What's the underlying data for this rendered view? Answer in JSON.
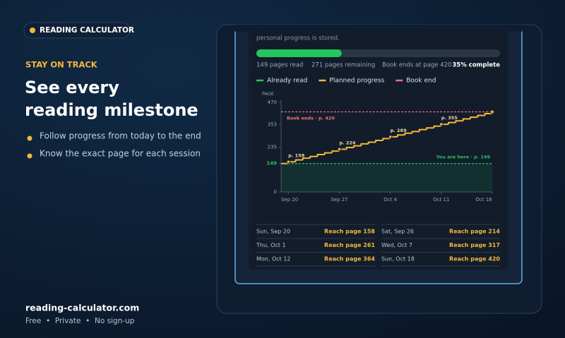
{
  "badge": "READING CALCULATOR",
  "eyebrow": "STAY ON TRACK",
  "headline": [
    "See every",
    "reading milestone"
  ],
  "bullets": [
    "Follow progress from today to the end",
    "Know the exact page for each session"
  ],
  "footer": {
    "site": "reading-calculator.com",
    "tagline": "Free  •  Private  •  No sign-up"
  },
  "card": {
    "intro": "personal progress is stored.",
    "progress": {
      "percent": 35,
      "label": "35% complete"
    },
    "stats": [
      "149 pages read",
      "271 pages remaining",
      "Book ends at page 420"
    ],
    "schedule": [
      [
        {
          "date": "Sun, Sep 20",
          "goal": "Reach page 158"
        },
        {
          "date": "Sat, Sep 26",
          "goal": "Reach page 214"
        }
      ],
      [
        {
          "date": "Thu, Oct 1",
          "goal": "Reach page 261"
        },
        {
          "date": "Wed, Oct 7",
          "goal": "Reach page 317"
        }
      ],
      [
        {
          "date": "Mon, Oct 12",
          "goal": "Reach page 364"
        },
        {
          "date": "Sun, Oct 18",
          "goal": "Reach page 420"
        }
      ]
    ]
  },
  "chart_data": {
    "type": "step",
    "ylabel": "PAGE",
    "legend": [
      {
        "name": "Already read",
        "color": "#22c55e"
      },
      {
        "name": "Planned progress",
        "color": "#f5b73b"
      },
      {
        "name": "Book end",
        "color": "#f07178"
      }
    ],
    "series": [
      {
        "name": "Planned progress",
        "color": "#f5b73b",
        "x": [
          0,
          1,
          2,
          3,
          4,
          5,
          6,
          7,
          8,
          9,
          10,
          11,
          12,
          13,
          14,
          15,
          16,
          17,
          18,
          19,
          20,
          21,
          22,
          23,
          24,
          25,
          26,
          27,
          28,
          29
        ],
        "values": [
          149,
          158,
          168,
          177,
          186,
          196,
          205,
          214,
          224,
          233,
          242,
          252,
          261,
          270,
          280,
          289,
          299,
          308,
          317,
          327,
          336,
          345,
          355,
          364,
          373,
          383,
          392,
          401,
          411,
          420
        ]
      }
    ],
    "points": [
      {
        "x": 1,
        "value": 158,
        "label": "p. 158"
      },
      {
        "x": 8,
        "value": 224,
        "label": "p. 224"
      },
      {
        "x": 15,
        "value": 289,
        "label": "p. 289"
      },
      {
        "x": 22,
        "value": 355,
        "label": "p. 355"
      }
    ],
    "reference_lines": [
      {
        "value": 420,
        "label": "Book ends · p. 420",
        "color": "#f07178"
      },
      {
        "value": 149,
        "label": "You are here · p. 149",
        "color": "#22c55e"
      }
    ],
    "xlim": [
      0,
      29
    ],
    "xticks": [
      {
        "value": 1,
        "label": "Sep 20"
      },
      {
        "value": 8,
        "label": "Sep 27"
      },
      {
        "value": 15,
        "label": "Oct 4"
      },
      {
        "value": 22,
        "label": "Oct 11"
      },
      {
        "value": 29,
        "label": "Oct 18"
      }
    ],
    "ylim": [
      0,
      470
    ],
    "yticks": [
      0,
      149,
      235,
      353,
      470
    ]
  }
}
